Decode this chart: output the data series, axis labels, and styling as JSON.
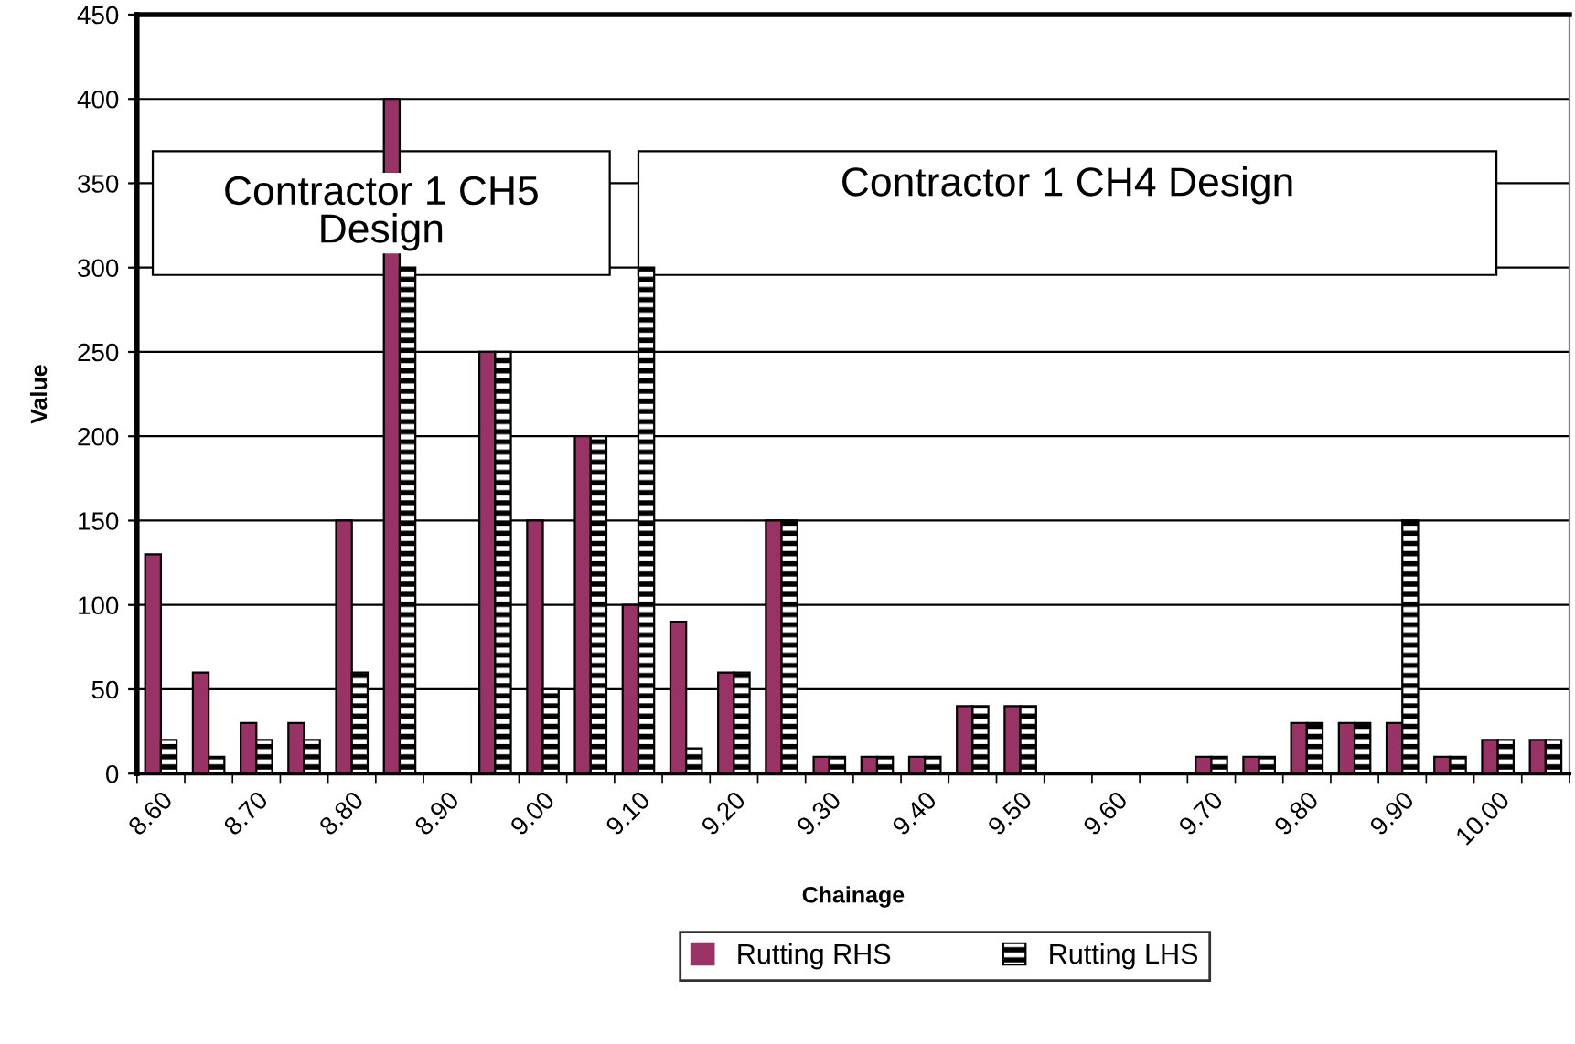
{
  "chart_data": {
    "type": "bar",
    "xlabel": "Chainage",
    "ylabel": "Value",
    "categories": [
      "8.60",
      null,
      "8.70",
      null,
      "8.80",
      null,
      "8.90",
      null,
      "9.00",
      null,
      "9.10",
      null,
      "9.20",
      null,
      "9.30",
      null,
      "9.40",
      null,
      "9.50",
      null,
      "9.60",
      null,
      "9.70",
      null,
      "9.80",
      null,
      "9.90",
      null,
      "10.00",
      null
    ],
    "series": [
      {
        "name": "Rutting RHS",
        "color": "#993366",
        "values": [
          130,
          60,
          30,
          30,
          150,
          400,
          null,
          250,
          150,
          200,
          100,
          90,
          60,
          150,
          10,
          10,
          10,
          40,
          40,
          null,
          null,
          null,
          10,
          10,
          30,
          30,
          30,
          10,
          20,
          20
        ]
      },
      {
        "name": "Rutting LHS",
        "color": "#000000",
        "values": [
          20,
          10,
          20,
          20,
          60,
          300,
          null,
          250,
          50,
          200,
          300,
          15,
          60,
          150,
          10,
          10,
          10,
          40,
          40,
          null,
          null,
          null,
          10,
          10,
          30,
          30,
          150,
          10,
          20,
          20
        ]
      }
    ],
    "ylim": [
      0,
      450
    ],
    "yticks": [
      0,
      50,
      100,
      150,
      200,
      250,
      300,
      350,
      400,
      450
    ],
    "grid": "y",
    "legend": "bottom",
    "annotations": [
      "Contractor 1 CH5 Design",
      "Contractor 1 CH4 Design"
    ]
  }
}
